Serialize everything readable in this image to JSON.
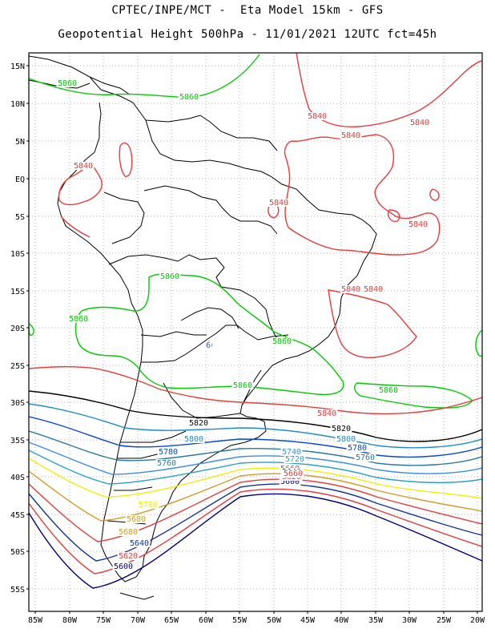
{
  "header": {
    "line1": "CPTEC/INPE/MCT -  Eta Model 15km - GFS",
    "line2": "Geopotential Height 500hPa - 11/01/2021 12UTC fct=45h"
  },
  "axes": {
    "lat_labels": [
      "15N",
      "10N",
      "5N",
      "EQ",
      "5S",
      "10S",
      "15S",
      "20S",
      "25S",
      "30S",
      "35S",
      "40S",
      "45S",
      "50S",
      "55S"
    ],
    "lon_labels": [
      "85W",
      "80W",
      "75W",
      "70W",
      "65W",
      "60W",
      "55W",
      "50W",
      "45W",
      "40W",
      "35W",
      "30W",
      "25W",
      "20W"
    ]
  },
  "colors": {
    "c5860": "#00cc00",
    "c5840": "#e83c3c",
    "c5820": "#000000",
    "c5800": "#1e8cc8",
    "c5780": "#0a46dc",
    "c5760": "#2878a0",
    "c5740": "#3c8ce6",
    "c5720": "#28a0c8",
    "c5700": "#f0f000",
    "c5680": "#d29b28",
    "c5660": "#e83c3c",
    "c5640": "#14329b",
    "c5620": "#e83c3c",
    "c5600": "#000080",
    "blue_mark": "#3c50dc",
    "coast": "#000000"
  },
  "contour_labels": [
    {
      "text": "5860",
      "color": "c5860"
    },
    {
      "text": "5860",
      "color": "c5860"
    },
    {
      "text": "5860",
      "color": "c5860"
    },
    {
      "text": "5860",
      "color": "c5860"
    },
    {
      "text": "5860",
      "color": "c5860"
    },
    {
      "text": "5860",
      "color": "c5860"
    },
    {
      "text": "5860",
      "color": "c5860"
    },
    {
      "text": "5840",
      "color": "c5840"
    },
    {
      "text": "5840",
      "color": "c5840"
    },
    {
      "text": "5840",
      "color": "c5840"
    },
    {
      "text": "5840",
      "color": "c5840"
    },
    {
      "text": "5840",
      "color": "c5840"
    },
    {
      "text": "5840",
      "color": "c5840"
    },
    {
      "text": "5840",
      "color": "c5840"
    },
    {
      "text": "5840",
      "color": "c5840"
    },
    {
      "text": "5840",
      "color": "c5840"
    },
    {
      "text": "5820",
      "color": "c5820"
    },
    {
      "text": "5820",
      "color": "c5820"
    },
    {
      "text": "5800",
      "color": "c5800"
    },
    {
      "text": "5800",
      "color": "c5800"
    },
    {
      "text": "5780",
      "color": "c5780"
    },
    {
      "text": "5780",
      "color": "c5780"
    },
    {
      "text": "5760",
      "color": "c5760"
    },
    {
      "text": "5760",
      "color": "c5760"
    },
    {
      "text": "5740",
      "color": "c5740"
    },
    {
      "text": "5720",
      "color": "c5720"
    },
    {
      "text": "5700",
      "color": "c5700"
    },
    {
      "text": "5680",
      "color": "c5680"
    },
    {
      "text": "5680",
      "color": "c5680"
    },
    {
      "text": "5660",
      "color": "c5660"
    },
    {
      "text": "5640",
      "color": "c5640"
    },
    {
      "text": "5640",
      "color": "c5640"
    },
    {
      "text": "5620",
      "color": "c5620"
    },
    {
      "text": "5600",
      "color": "c5600"
    },
    {
      "text": "5600",
      "color": "c5600"
    },
    {
      "text": "5620",
      "color": "c5620"
    },
    {
      "text": "5660",
      "color": "c5660"
    },
    {
      "text": "6",
      "color": "blue_mark"
    }
  ]
}
